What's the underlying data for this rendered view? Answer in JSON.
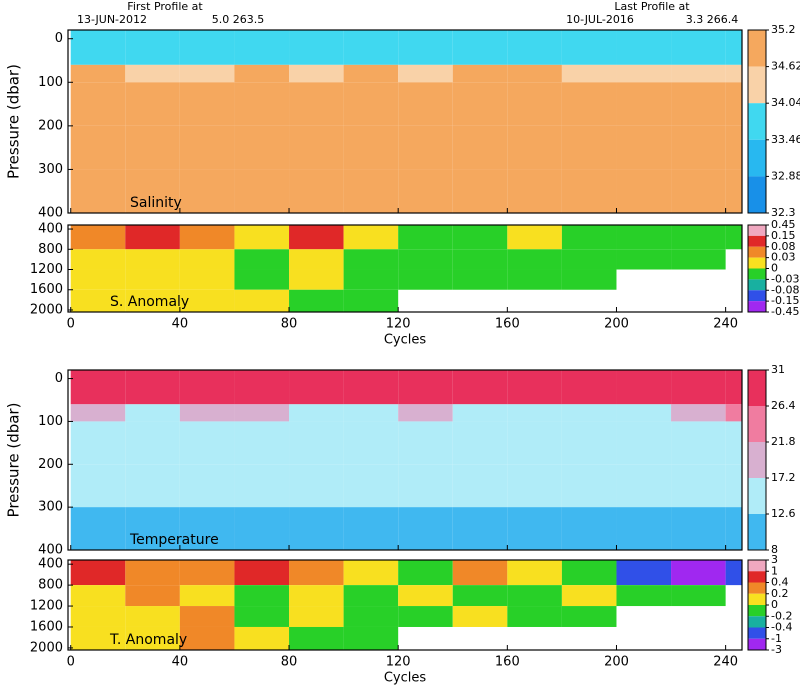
{
  "chart_data": [
    {
      "type": "heatmap",
      "label": "Salinity",
      "ylabel": "Pressure (dbar)",
      "annotations": [
        "First Profile at",
        "13-JUN-2012",
        "5.0 263.5",
        "Last Profile at",
        "10-JUL-2016",
        "3.3 266.4"
      ],
      "xlim": [
        -1,
        246
      ],
      "xticks": [
        0,
        40,
        80,
        120,
        160,
        200,
        240
      ],
      "xtick_labels": false,
      "ylim": [
        -20,
        400
      ],
      "yticks": [
        0,
        100,
        200,
        300,
        400
      ],
      "x": [
        0,
        20,
        40,
        60,
        80,
        100,
        120,
        140,
        160,
        180,
        200,
        220,
        240,
        246
      ],
      "depths": [
        -20,
        60,
        100,
        200,
        300,
        400
      ],
      "values": [
        [
          33.9,
          33.8,
          33.7,
          33.9,
          33.8,
          33.9,
          33.7,
          33.8,
          33.9,
          33.8,
          33.7,
          33.9,
          33.8
        ],
        [
          34.7,
          34.6,
          34.6,
          34.7,
          34.5,
          34.7,
          34.6,
          34.7,
          34.7,
          34.6,
          34.5,
          34.6,
          34.6
        ],
        [
          34.85,
          34.85,
          34.8,
          34.85,
          34.85,
          34.85,
          34.9,
          34.9,
          34.85,
          34.85,
          34.85,
          34.8,
          34.8
        ],
        [
          34.8,
          34.8,
          34.8,
          34.85,
          34.8,
          34.8,
          34.85,
          34.85,
          34.8,
          34.8,
          34.8,
          34.8,
          34.8
        ],
        [
          34.75,
          34.75,
          34.75,
          34.8,
          34.75,
          34.75,
          34.8,
          34.8,
          34.75,
          34.75,
          34.75,
          34.75,
          34.75
        ]
      ],
      "levels": [
        35.2,
        34.62,
        34.04,
        33.46,
        32.88,
        32.3
      ],
      "colors": [
        "#f5a85e",
        "#f9d2a8",
        "#40d8f0",
        "#28b8f0",
        "#1890e8"
      ]
    },
    {
      "type": "heatmap",
      "label": "S. Anomaly",
      "xlabel": "Cycles",
      "xlim": [
        -1,
        246
      ],
      "xticks": [
        0,
        40,
        80,
        120,
        160,
        200,
        240
      ],
      "ylim": [
        320,
        2040
      ],
      "yticks": [
        400,
        800,
        1200,
        1600,
        2000
      ],
      "x": [
        0,
        20,
        40,
        60,
        80,
        100,
        120,
        140,
        160,
        180,
        200,
        220,
        240,
        246
      ],
      "depths": [
        320,
        800,
        1200,
        1600,
        2040
      ],
      "values": [
        [
          0.05,
          0.1,
          0.05,
          0.02,
          0.1,
          0.02,
          -0.01,
          -0.02,
          0.02,
          -0.01,
          -0.02,
          -0.01,
          -0.02
        ],
        [
          0.02,
          0.02,
          0.01,
          -0.01,
          0.01,
          -0.01,
          -0.02,
          -0.01,
          -0.02,
          -0.02,
          -0.01,
          -0.01,
          null
        ],
        [
          0.02,
          0.01,
          0.02,
          -0.01,
          0.01,
          -0.01,
          -0.02,
          -0.01,
          -0.02,
          -0.01,
          null,
          null,
          null
        ],
        [
          0.02,
          0.02,
          0.01,
          0.02,
          -0.01,
          -0.01,
          null,
          null,
          null,
          null,
          null,
          null,
          null
        ]
      ],
      "levels": [
        0.45,
        0.15,
        0.08,
        0.03,
        0,
        -0.03,
        -0.08,
        -0.15,
        -0.45
      ],
      "colors": [
        "#f0a8c0",
        "#e02828",
        "#f08828",
        "#f8e020",
        "#28d028",
        "#18b0a0",
        "#3050e8",
        "#a028f0"
      ]
    },
    {
      "type": "heatmap",
      "label": "Temperature",
      "ylabel": "Pressure (dbar)",
      "xlim": [
        -1,
        246
      ],
      "xticks": [
        0,
        40,
        80,
        120,
        160,
        200,
        240
      ],
      "xtick_labels": false,
      "ylim": [
        -20,
        400
      ],
      "yticks": [
        0,
        100,
        200,
        300,
        400
      ],
      "x": [
        0,
        20,
        40,
        60,
        80,
        100,
        120,
        140,
        160,
        180,
        200,
        220,
        240,
        246
      ],
      "depths": [
        -20,
        60,
        100,
        200,
        300,
        400
      ],
      "values": [
        [
          28.5,
          28.5,
          28.8,
          28.6,
          28.5,
          28.7,
          28.4,
          28.5,
          28.6,
          28.5,
          28.6,
          28.4,
          28.5
        ],
        [
          18,
          16,
          19,
          20,
          17,
          15,
          19,
          16,
          15,
          17,
          16,
          20,
          22
        ],
        [
          15,
          14,
          15,
          14,
          13,
          15,
          14,
          14,
          13,
          14,
          14,
          14,
          14
        ],
        [
          13,
          12.8,
          13,
          12.8,
          13,
          13,
          13.5,
          13,
          13,
          13,
          13,
          13,
          13
        ],
        [
          11,
          10,
          10,
          11,
          10,
          11,
          11,
          12,
          11,
          11,
          11,
          11,
          11
        ]
      ],
      "levels": [
        31,
        26.4,
        21.8,
        17.2,
        12.6,
        8
      ],
      "colors": [
        "#e8305c",
        "#f07ca0",
        "#d8b0d0",
        "#b0ecf8",
        "#40b8f0"
      ]
    },
    {
      "type": "heatmap",
      "label": "T. Anomaly",
      "xlabel": "Cycles",
      "xlim": [
        -1,
        246
      ],
      "xticks": [
        0,
        40,
        80,
        120,
        160,
        200,
        240
      ],
      "ylim": [
        320,
        2040
      ],
      "yticks": [
        400,
        800,
        1200,
        1600,
        2000
      ],
      "x": [
        0,
        20,
        40,
        60,
        80,
        100,
        120,
        140,
        160,
        180,
        200,
        220,
        240,
        246
      ],
      "depths": [
        320,
        800,
        1200,
        1600,
        2040
      ],
      "values": [
        [
          0.5,
          0.3,
          0.2,
          0.5,
          0.3,
          0.1,
          -0.1,
          0.3,
          0.1,
          -0.1,
          -0.5,
          -1.2,
          -0.5
        ],
        [
          0.1,
          0.3,
          0.1,
          -0.1,
          0.1,
          -0.1,
          0.1,
          -0.1,
          -0.1,
          0.1,
          -0.1,
          -0.1,
          null
        ],
        [
          0.1,
          0.1,
          0.3,
          -0.1,
          0.1,
          -0.1,
          -0.1,
          0.1,
          -0.1,
          -0.1,
          null,
          null,
          null
        ],
        [
          0.1,
          0.1,
          0.3,
          0.1,
          -0.1,
          -0.1,
          null,
          null,
          null,
          null,
          null,
          null,
          null
        ]
      ],
      "levels": [
        3,
        1,
        0.4,
        0.2,
        0,
        -0.2,
        -0.4,
        -1,
        -3
      ],
      "colors": [
        "#f0a8c0",
        "#e02828",
        "#f08828",
        "#f8e020",
        "#28d028",
        "#18b0a0",
        "#3050e8",
        "#a028f0"
      ]
    }
  ]
}
